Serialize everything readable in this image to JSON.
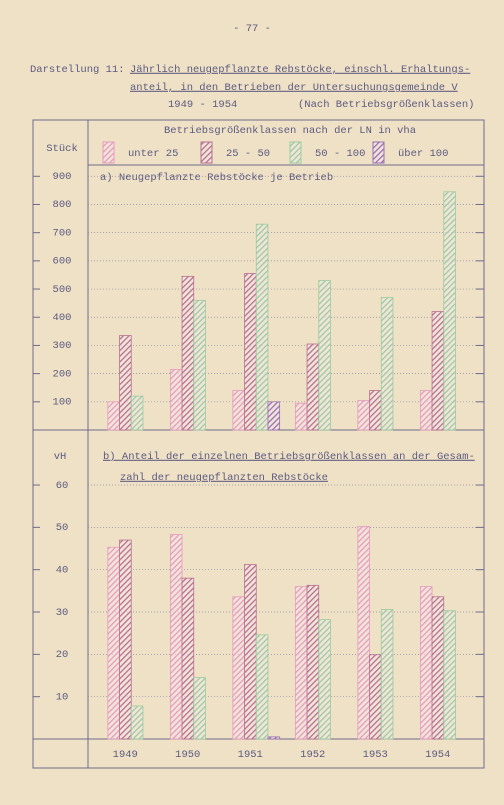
{
  "header": {
    "page_number": "- 77 -",
    "label": "Darstellung 11:",
    "title_lines": [
      "Jährlich neugepflanzte Rebstöcke, einschl. Erhaltungs-",
      "anteil, in den Betrieben der Untersuchungsgemeinde V"
    ],
    "years": "1949 - 1954",
    "note": "(Nach Betriebsgrößenklassen)"
  },
  "legend_title": "Betriebsgrößenklassen nach der LN in vha",
  "chart_data": [
    {
      "type": "bar",
      "subtitle": [
        "a) Neugepflanzte Rebstöcke je Betrieb"
      ],
      "y_label": "Stück",
      "ylim": [
        0,
        940
      ],
      "yticks": [
        100,
        200,
        300,
        400,
        500,
        600,
        700,
        800,
        900
      ],
      "grid": true,
      "series": [
        {
          "name": "unter 25",
          "color": "#e79bbd",
          "values": [
            100,
            215,
            140,
            95,
            105,
            140
          ]
        },
        {
          "name": "25 - 50",
          "color": "#b86f8f",
          "values": [
            335,
            545,
            555,
            305,
            140,
            420
          ]
        },
        {
          "name": "50 - 100",
          "color": "#9ccb9e",
          "values": [
            120,
            460,
            730,
            530,
            470,
            845
          ]
        },
        {
          "name": "über 100",
          "color": "#9a6fb3",
          "values": [
            null,
            null,
            100,
            null,
            null,
            null
          ]
        }
      ]
    },
    {
      "type": "bar",
      "subtitle": [
        "b) Anteil der einzelnen Betriebsgrößenklassen an der Gesam-",
        "zahl der neugepflanzten Rebstöcke"
      ],
      "y_label": "vH",
      "categories": [
        "1949",
        "1950",
        "1951",
        "1952",
        "1953",
        "1954"
      ],
      "ylim": [
        0,
        73
      ],
      "yticks": [
        10,
        20,
        30,
        40,
        50,
        60
      ],
      "grid": true,
      "series": [
        {
          "values": [
            45.3,
            48.3,
            33.6,
            36,
            50.2,
            36
          ]
        },
        {
          "values": [
            47,
            38,
            41.2,
            36.3,
            19.9,
            33.6
          ]
        },
        {
          "values": [
            7.8,
            14.5,
            24.6,
            28.2,
            30.6,
            30.3
          ]
        },
        {
          "values": [
            null,
            null,
            0.5,
            null,
            null,
            null
          ]
        }
      ]
    }
  ]
}
